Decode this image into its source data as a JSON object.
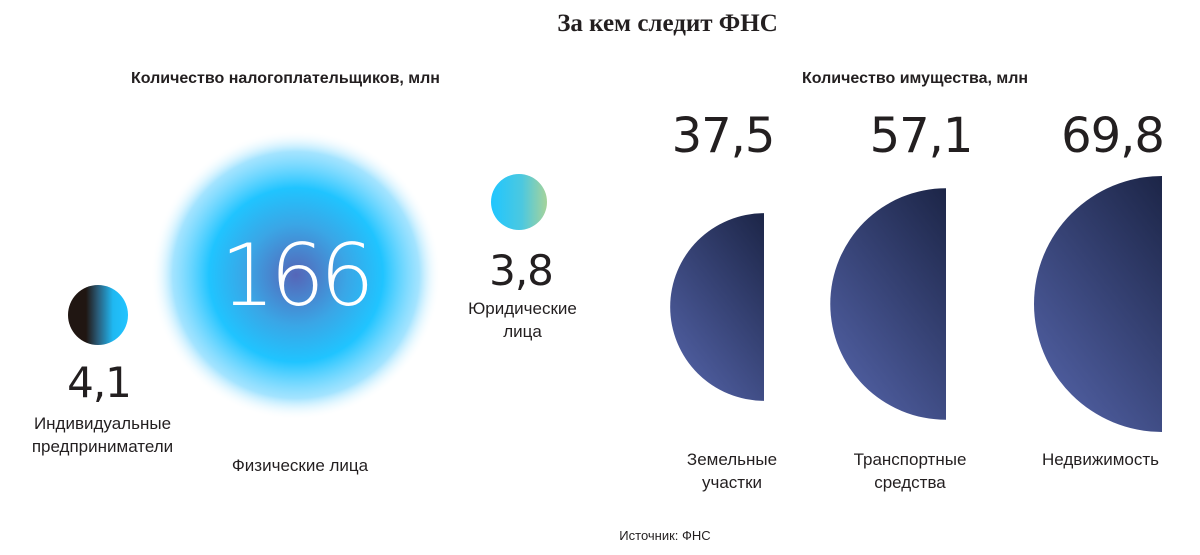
{
  "title": "За кем следит ФНС",
  "source": "Источник: ФНС",
  "chart_data": [
    {
      "type": "bubble",
      "subtitle": "Количество налогоплательщиков, млн",
      "items": [
        {
          "label": "Индивидуальные\nпредприниматели",
          "value": 4.1,
          "display": "4,1"
        },
        {
          "label": "Физические лица",
          "value": 166,
          "display": "166"
        },
        {
          "label": "Юридические\nлица",
          "value": 3.8,
          "display": "3,8"
        }
      ]
    },
    {
      "type": "half-circle",
      "subtitle": "Количество имущества, млн",
      "items": [
        {
          "label": "Земельные\nучастки",
          "value": 37.5,
          "display": "37,5"
        },
        {
          "label": "Транспортные\nсредства",
          "value": 57.1,
          "display": "57,1"
        },
        {
          "label": "Недвижимость",
          "value": 69.8,
          "display": "69,8"
        }
      ]
    }
  ],
  "colors": {
    "text": "#231f20",
    "blue": "#1fc1ff",
    "navy_dark": "#1c2547",
    "navy_light": "#4a5798",
    "green": "#9ed0a0",
    "dark": "#201612"
  }
}
